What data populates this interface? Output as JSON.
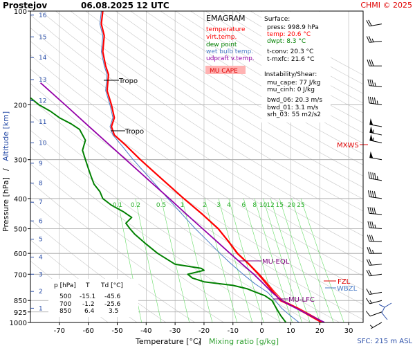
{
  "header": {
    "station": "Prostejov",
    "datetime": "06.08.2025 12 UTC",
    "credit": "CHMI © 2025"
  },
  "legend": {
    "title": "EMAGRAM",
    "items": [
      {
        "label": "temperature",
        "color": "#ff0000"
      },
      {
        "label": "virt.temp.",
        "color": "#ff0000"
      },
      {
        "label": "dew point",
        "color": "#008000"
      },
      {
        "label": "wet bulb temp.",
        "color": "#4a7cc7"
      },
      {
        "label": "udpraft v.temp.",
        "color": "#9400a8"
      }
    ],
    "mu_cape_label": "MU CAPE",
    "mu_cape_bg": "#ffb3b3"
  },
  "surface_info": {
    "heading": "Surface:",
    "lines": [
      {
        "text": "press: 998.9 hPa",
        "color": "#000000"
      },
      {
        "text": "temp: 20.6 °C",
        "color": "#ff0000"
      },
      {
        "text": "dwpt: 8.3 °C",
        "color": "#008000"
      },
      {
        "text": "t-conv: 20.3 °C",
        "color": "#000000"
      },
      {
        "text": "t-mxfc: 21.6 °C",
        "color": "#000000"
      }
    ],
    "instability_heading": "Instability/Shear:",
    "instability_lines": [
      "mu_cape: 77 J/kg",
      "mu_cinh: 0 J/kg",
      "bwd_06: 20.3 m/s",
      "bwd_01: 3.1 m/s",
      "srh_03: 55 m2/s2"
    ]
  },
  "level_table": {
    "headers": [
      "p [hPa]",
      "T",
      "Td [°C]"
    ],
    "rows": [
      [
        "500",
        "-15.1",
        "-45.6"
      ],
      [
        "700",
        "-1.2",
        "-25.6"
      ],
      [
        "850",
        "6.4",
        "3.5"
      ]
    ]
  },
  "annotations": {
    "tropo_label": "Tropo",
    "mu_eql": "MU-EQL",
    "mu_lfc": "MU-LFC",
    "fzl": "FZL",
    "wbzl": "WBZL",
    "mxws": "MXWS",
    "sfc": "SFC: 215 m ASL"
  },
  "chart_data": {
    "type": "line",
    "xlabel": "Temperature [°C]",
    "xlabel_sep": "/",
    "xlabel2": "Mixing ratio [g/kg]",
    "ylabel": "Pressure [hPa]",
    "ylabel_sep": "/",
    "ylabel2": "Altitude [km]",
    "xlim": [
      -80,
      35
    ],
    "ylim": [
      1000,
      100
    ],
    "y_scale": "log-pressure",
    "x_ticks": [
      "-70",
      "-60",
      "-50",
      "-40",
      "-30",
      "-20",
      "-10",
      "0",
      "10",
      "20",
      "30"
    ],
    "x_tick_values": [
      -70,
      -60,
      -50,
      -40,
      -30,
      -20,
      -10,
      0,
      10,
      20,
      30
    ],
    "p_ticks": [
      "100",
      "200",
      "300",
      "400",
      "500",
      "600",
      "700",
      "850",
      "925",
      "1000"
    ],
    "p_tick_values": [
      100,
      200,
      300,
      400,
      500,
      600,
      700,
      850,
      925,
      1000
    ],
    "altitude_ticks": [
      {
        "km": "1",
        "p": 900
      },
      {
        "km": "2",
        "p": 795
      },
      {
        "km": "3",
        "p": 700
      },
      {
        "km": "4",
        "p": 617
      },
      {
        "km": "5",
        "p": 540
      },
      {
        "km": "6",
        "p": 472
      },
      {
        "km": "7",
        "p": 411
      },
      {
        "km": "8",
        "p": 357
      },
      {
        "km": "9",
        "p": 308
      },
      {
        "km": "10",
        "p": 265
      },
      {
        "km": "11",
        "p": 227
      },
      {
        "km": "12",
        "p": 194
      },
      {
        "km": "13",
        "p": 166
      },
      {
        "km": "14",
        "p": 141
      },
      {
        "km": "15",
        "p": 121
      },
      {
        "km": "16",
        "p": 103
      }
    ],
    "mixing_ratio_labels": [
      "0.1",
      "0.2",
      "0.5",
      "1",
      "2",
      "3",
      "4",
      "6",
      "8",
      "10",
      "12",
      "15",
      "20",
      "25"
    ],
    "mixing_ratio_values": [
      0.1,
      0.2,
      0.5,
      1,
      2,
      3,
      4,
      6,
      8,
      10,
      12,
      15,
      20,
      25
    ],
    "series": [
      {
        "name": "temperature",
        "color": "#ff0000",
        "points": [
          [
            998.9,
            20.6
          ],
          [
            950,
            16.5
          ],
          [
            900,
            12.0
          ],
          [
            850,
            6.4
          ],
          [
            800,
            4.0
          ],
          [
            750,
            1.5
          ],
          [
            700,
            -1.2
          ],
          [
            650,
            -4.5
          ],
          [
            600,
            -8.5
          ],
          [
            550,
            -11.5
          ],
          [
            500,
            -15.1
          ],
          [
            450,
            -20.5
          ],
          [
            400,
            -27.0
          ],
          [
            350,
            -34.0
          ],
          [
            300,
            -42.0
          ],
          [
            270,
            -47.0
          ],
          [
            250,
            -51.0
          ],
          [
            235,
            -52.0
          ],
          [
            220,
            -51.0
          ],
          [
            200,
            -52.0
          ],
          [
            180,
            -53.5
          ],
          [
            160,
            -53.0
          ],
          [
            150,
            -54.0
          ],
          [
            135,
            -55.0
          ],
          [
            120,
            -54.5
          ],
          [
            110,
            -55.5
          ],
          [
            100,
            -55.0
          ]
        ]
      },
      {
        "name": "virt.temp.",
        "color": "#ff0000",
        "points": [
          [
            998.9,
            21.6
          ],
          [
            950,
            17.4
          ],
          [
            900,
            12.8
          ],
          [
            850,
            7.2
          ],
          [
            800,
            4.6
          ],
          [
            750,
            2.0
          ],
          [
            700,
            -0.8
          ],
          [
            650,
            -4.2
          ],
          [
            600,
            -8.2
          ],
          [
            550,
            -11.3
          ],
          [
            500,
            -15.0
          ],
          [
            450,
            -20.4
          ],
          [
            400,
            -27.0
          ]
        ]
      },
      {
        "name": "dew point",
        "color": "#008000",
        "points": [
          [
            998.9,
            8.3
          ],
          [
            950,
            6.5
          ],
          [
            900,
            5.0
          ],
          [
            850,
            3.5
          ],
          [
            820,
            1.0
          ],
          [
            800,
            -2.0
          ],
          [
            780,
            -5.0
          ],
          [
            760,
            -10.0
          ],
          [
            740,
            -20.0
          ],
          [
            720,
            -24.0
          ],
          [
            700,
            -25.6
          ],
          [
            680,
            -20.0
          ],
          [
            670,
            -21.0
          ],
          [
            650,
            -30.0
          ],
          [
            600,
            -36.0
          ],
          [
            560,
            -40.0
          ],
          [
            520,
            -44.0
          ],
          [
            500,
            -45.6
          ],
          [
            480,
            -47.0
          ],
          [
            460,
            -45.0
          ],
          [
            440,
            -48.0
          ],
          [
            420,
            -52.0
          ],
          [
            400,
            -55.0
          ],
          [
            380,
            -56.0
          ],
          [
            360,
            -58.0
          ],
          [
            340,
            -59.0
          ],
          [
            320,
            -60.0
          ],
          [
            300,
            -61.0
          ],
          [
            280,
            -62.0
          ],
          [
            260,
            -61.0
          ],
          [
            240,
            -63.0
          ],
          [
            230,
            -66.0
          ],
          [
            220,
            -70.0
          ],
          [
            210,
            -73.0
          ],
          [
            200,
            -77.0
          ],
          [
            190,
            -80.0
          ]
        ]
      },
      {
        "name": "wet bulb temp.",
        "color": "#4a7cc7",
        "points": [
          [
            998.9,
            12.8
          ],
          [
            950,
            9.8
          ],
          [
            900,
            6.8
          ],
          [
            850,
            4.6
          ],
          [
            800,
            2.0
          ],
          [
            750,
            -2.5
          ],
          [
            700,
            -6.5
          ],
          [
            650,
            -10.5
          ],
          [
            600,
            -14.5
          ],
          [
            550,
            -18.5
          ],
          [
            500,
            -23.0
          ],
          [
            450,
            -27.5
          ],
          [
            400,
            -32.5
          ],
          [
            350,
            -38.0
          ],
          [
            300,
            -44.5
          ],
          [
            270,
            -48.5
          ],
          [
            250,
            -51.5
          ],
          [
            235,
            -52.5
          ],
          [
            220,
            -51.5
          ],
          [
            200,
            -52.5
          ],
          [
            180,
            -54.0
          ],
          [
            160,
            -53.5
          ],
          [
            150,
            -54.5
          ],
          [
            135,
            -55.5
          ],
          [
            120,
            -55.0
          ],
          [
            110,
            -56.0
          ],
          [
            100,
            -55.5
          ]
        ]
      },
      {
        "name": "udpraft v.temp.",
        "color": "#9400a8",
        "points": [
          [
            998.9,
            21.6
          ],
          [
            950,
            16.8
          ],
          [
            900,
            11.8
          ],
          [
            850,
            6.8
          ],
          [
            800,
            3.5
          ],
          [
            750,
            0.5
          ],
          [
            700,
            -2.8
          ],
          [
            650,
            -6.8
          ],
          [
            600,
            -11.0
          ],
          [
            550,
            -15.5
          ],
          [
            500,
            -20.5
          ],
          [
            450,
            -26.0
          ],
          [
            400,
            -32.0
          ],
          [
            350,
            -39.0
          ],
          [
            300,
            -47.0
          ],
          [
            250,
            -56.5
          ],
          [
            200,
            -68.0
          ],
          [
            180,
            -73.5
          ],
          [
            170,
            -76.5
          ]
        ]
      }
    ],
    "wind_barbs": [
      {
        "p": 998.9,
        "dir": 240,
        "spd": 3
      },
      {
        "p": 925,
        "dir": 250,
        "spd": 5
      },
      {
        "p": 850,
        "dir": 255,
        "spd": 7
      },
      {
        "p": 800,
        "dir": 260,
        "spd": 8
      },
      {
        "p": 700,
        "dir": 262,
        "spd": 10
      },
      {
        "p": 650,
        "dir": 265,
        "spd": 11
      },
      {
        "p": 600,
        "dir": 270,
        "spd": 13
      },
      {
        "p": 550,
        "dir": 272,
        "spd": 15
      },
      {
        "p": 500,
        "dir": 275,
        "spd": 17
      },
      {
        "p": 450,
        "dir": 275,
        "spd": 19
      },
      {
        "p": 400,
        "dir": 278,
        "spd": 21
      },
      {
        "p": 350,
        "dir": 280,
        "spd": 23
      },
      {
        "p": 300,
        "dir": 280,
        "spd": 25
      },
      {
        "p": 265,
        "dir": 282,
        "spd": 28
      },
      {
        "p": 250,
        "dir": 282,
        "spd": 27
      },
      {
        "p": 235,
        "dir": 280,
        "spd": 25
      },
      {
        "p": 200,
        "dir": 278,
        "spd": 22
      },
      {
        "p": 175,
        "dir": 275,
        "spd": 18
      },
      {
        "p": 150,
        "dir": 270,
        "spd": 15
      },
      {
        "p": 125,
        "dir": 265,
        "spd": 12
      },
      {
        "p": 110,
        "dir": 260,
        "spd": 10
      }
    ]
  }
}
